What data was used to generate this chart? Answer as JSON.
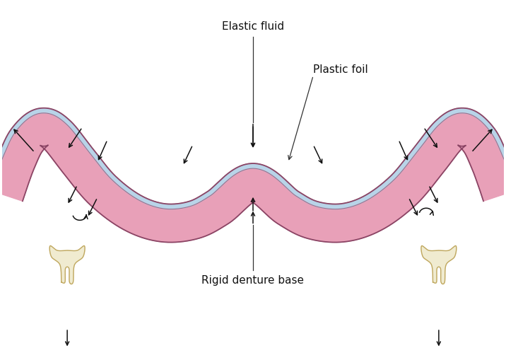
{
  "bg_color": "#ffffff",
  "pink_color": "#E8A0B8",
  "blue_color": "#B8D4E8",
  "outline_color": "#8B4565",
  "tooth_color": "#F0EBD0",
  "tooth_border": "#C8B870",
  "label_elastic": "Elastic fluid",
  "label_plastic": "Plastic foil",
  "label_denture": "Rigid denture base",
  "label_fontsize": 11,
  "fig_width": 7.16,
  "fig_height": 5.09,
  "dpi": 100
}
